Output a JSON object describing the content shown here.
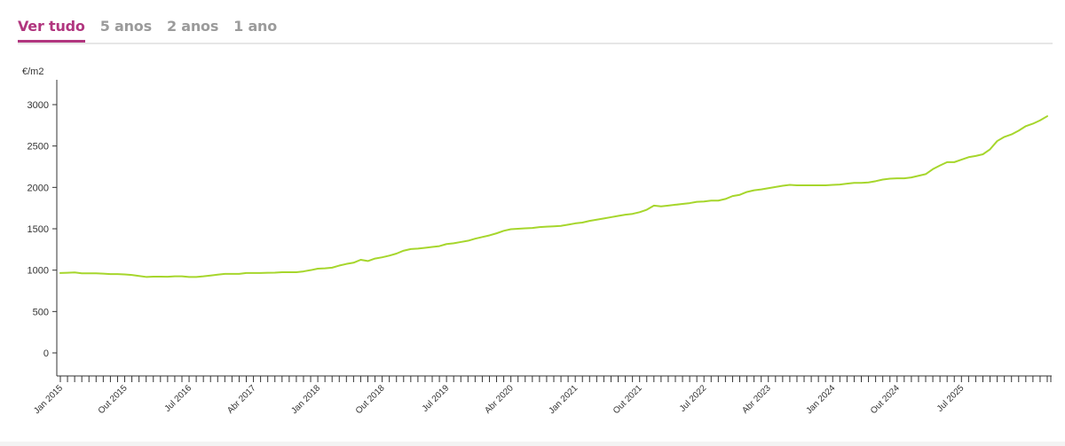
{
  "tabs": [
    {
      "label": "Ver tudo",
      "active": true
    },
    {
      "label": "5 anos",
      "active": false
    },
    {
      "label": "2 anos",
      "active": false
    },
    {
      "label": "1 ano",
      "active": false
    }
  ],
  "colors": {
    "accent": "#b1367f",
    "line": "#a6d62c",
    "inactive_tab": "#9b9b9b"
  },
  "chart_data": {
    "type": "line",
    "ylabel": "€/m2",
    "ylim": [
      -300,
      3300
    ],
    "yticks": [
      0,
      500,
      1000,
      1500,
      2000,
      2500,
      3000
    ],
    "grid": false,
    "x_start": "2015-01",
    "x_tick_labels": [
      "Jan 2015",
      "Out 2015",
      "Jul 2016",
      "Abr 2017",
      "Jan 2018",
      "Out 2018",
      "Jul 2019",
      "Abr 2020",
      "Jan 2021",
      "Out 2021",
      "Jul 2022",
      "Abr 2023",
      "Jan 2024",
      "Out 2024",
      "Jul 2025"
    ],
    "series": [
      {
        "color": "#a6d62c",
        "values": [
          965,
          968,
          972,
          962,
          962,
          962,
          958,
          952,
          952,
          948,
          942,
          930,
          918,
          922,
          922,
          920,
          925,
          925,
          918,
          918,
          925,
          935,
          945,
          955,
          955,
          955,
          965,
          965,
          965,
          968,
          970,
          975,
          975,
          975,
          985,
          1000,
          1018,
          1022,
          1030,
          1055,
          1075,
          1090,
          1125,
          1110,
          1140,
          1155,
          1175,
          1200,
          1235,
          1255,
          1260,
          1270,
          1280,
          1290,
          1315,
          1325,
          1340,
          1355,
          1380,
          1400,
          1420,
          1445,
          1475,
          1495,
          1500,
          1505,
          1510,
          1520,
          1525,
          1530,
          1535,
          1550,
          1565,
          1575,
          1595,
          1610,
          1625,
          1640,
          1655,
          1670,
          1680,
          1700,
          1730,
          1780,
          1770,
          1780,
          1790,
          1800,
          1810,
          1825,
          1830,
          1840,
          1840,
          1860,
          1895,
          1910,
          1945,
          1965,
          1975,
          1990,
          2005,
          2020,
          2030,
          2025,
          2025,
          2025,
          2025,
          2025,
          2030,
          2035,
          2045,
          2055,
          2055,
          2060,
          2075,
          2095,
          2105,
          2110,
          2110,
          2120,
          2140,
          2160,
          2220,
          2265,
          2305,
          2305,
          2335,
          2365,
          2380,
          2400,
          2460,
          2560,
          2610,
          2640,
          2685,
          2740,
          2770,
          2810,
          2860
        ]
      }
    ]
  }
}
